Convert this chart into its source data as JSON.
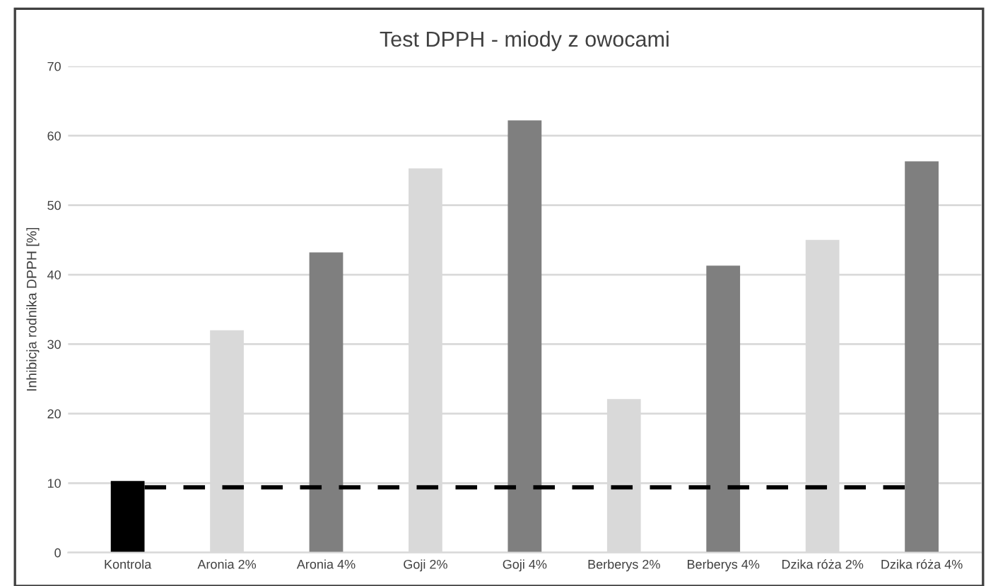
{
  "chart_data": {
    "type": "bar",
    "title": "Test DPPH - miody z owocami",
    "ylabel": "Inhibicja rodnika DPPH [%]",
    "categories": [
      "Kontrola",
      "Aronia 2%",
      "Aronia 4%",
      "Goji 2%",
      "Goji 4%",
      "Berberys 2%",
      "Berberys 4%",
      "Dzika róża 2%",
      "Dzika róża 4%"
    ],
    "values": [
      10.3,
      32.0,
      43.2,
      55.3,
      62.2,
      22.1,
      41.3,
      45.0,
      56.3
    ],
    "colors": [
      "#000000",
      "#d9d9d9",
      "#7f7f7f",
      "#d9d9d9",
      "#7f7f7f",
      "#d9d9d9",
      "#7f7f7f",
      "#d9d9d9",
      "#7f7f7f"
    ],
    "ylim": [
      0,
      70
    ],
    "yticks": [
      0,
      10,
      20,
      30,
      40,
      50,
      60,
      70
    ],
    "grid": "y",
    "ref_lines": [
      {
        "axis": "y",
        "value": 9.4,
        "color": "#000000",
        "line_style": "dashed"
      }
    ]
  }
}
